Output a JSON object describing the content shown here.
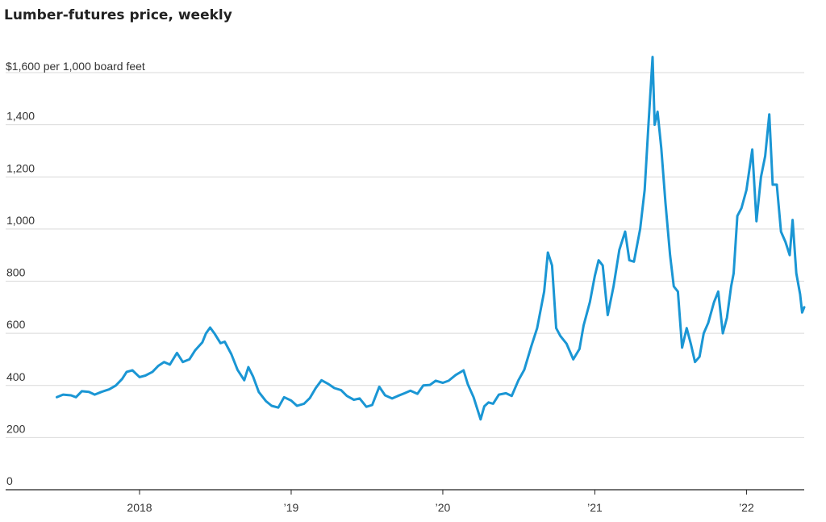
{
  "colors": {
    "line": "#1a96d4",
    "grid": "#d9d9d9",
    "axis": "#222222"
  },
  "chart_data": {
    "type": "line",
    "title": "Lumber-futures price, weekly",
    "unit_label": "$1,600 per 1,000 board feet",
    "ylim": [
      0,
      1600
    ],
    "yticks": [
      {
        "value": 0,
        "label": "0"
      },
      {
        "value": 200,
        "label": "200"
      },
      {
        "value": 400,
        "label": "400"
      },
      {
        "value": 600,
        "label": "600"
      },
      {
        "value": 800,
        "label": "800"
      },
      {
        "value": 1000,
        "label": "1,000"
      },
      {
        "value": 1200,
        "label": "1,200"
      },
      {
        "value": 1400,
        "label": "1,400"
      }
    ],
    "xlim": [
      "2017-06-15",
      "2022-05-20"
    ],
    "xticks": [
      {
        "date": "2018-01-01",
        "label": "2018"
      },
      {
        "date": "2019-01-01",
        "label": "’19"
      },
      {
        "date": "2020-01-01",
        "label": "’20"
      },
      {
        "date": "2021-01-01",
        "label": "’21"
      },
      {
        "date": "2022-01-01",
        "label": "’22"
      }
    ],
    "grid": true,
    "series": [
      {
        "points": [
          [
            "2017-06-16",
            355
          ],
          [
            "2017-07-01",
            365
          ],
          [
            "2017-07-20",
            362
          ],
          [
            "2017-08-01",
            355
          ],
          [
            "2017-08-15",
            378
          ],
          [
            "2017-09-01",
            375
          ],
          [
            "2017-09-15",
            365
          ],
          [
            "2017-10-01",
            375
          ],
          [
            "2017-10-20",
            385
          ],
          [
            "2017-11-05",
            400
          ],
          [
            "2017-11-20",
            425
          ],
          [
            "2017-12-01",
            452
          ],
          [
            "2017-12-15",
            458
          ],
          [
            "2018-01-01",
            432
          ],
          [
            "2018-01-15",
            438
          ],
          [
            "2018-02-01",
            452
          ],
          [
            "2018-02-15",
            475
          ],
          [
            "2018-03-01",
            490
          ],
          [
            "2018-03-15",
            480
          ],
          [
            "2018-04-01",
            525
          ],
          [
            "2018-04-15",
            490
          ],
          [
            "2018-05-01",
            500
          ],
          [
            "2018-05-15",
            535
          ],
          [
            "2018-06-01",
            565
          ],
          [
            "2018-06-10",
            600
          ],
          [
            "2018-06-20",
            622
          ],
          [
            "2018-07-01",
            598
          ],
          [
            "2018-07-15",
            562
          ],
          [
            "2018-07-25",
            568
          ],
          [
            "2018-08-10",
            520
          ],
          [
            "2018-08-25",
            460
          ],
          [
            "2018-09-10",
            420
          ],
          [
            "2018-09-20",
            470
          ],
          [
            "2018-10-01",
            435
          ],
          [
            "2018-10-15",
            375
          ],
          [
            "2018-11-01",
            340
          ],
          [
            "2018-11-15",
            322
          ],
          [
            "2018-12-01",
            315
          ],
          [
            "2018-12-15",
            355
          ],
          [
            "2019-01-01",
            342
          ],
          [
            "2019-01-15",
            322
          ],
          [
            "2019-02-01",
            330
          ],
          [
            "2019-02-15",
            352
          ],
          [
            "2019-03-01",
            390
          ],
          [
            "2019-03-15",
            420
          ],
          [
            "2019-04-01",
            405
          ],
          [
            "2019-04-15",
            390
          ],
          [
            "2019-05-01",
            382
          ],
          [
            "2019-05-15",
            360
          ],
          [
            "2019-06-01",
            345
          ],
          [
            "2019-06-15",
            350
          ],
          [
            "2019-07-01",
            318
          ],
          [
            "2019-07-15",
            325
          ],
          [
            "2019-08-01",
            395
          ],
          [
            "2019-08-15",
            362
          ],
          [
            "2019-09-01",
            350
          ],
          [
            "2019-09-15",
            360
          ],
          [
            "2019-10-01",
            370
          ],
          [
            "2019-10-15",
            380
          ],
          [
            "2019-11-01",
            368
          ],
          [
            "2019-11-15",
            400
          ],
          [
            "2019-12-01",
            402
          ],
          [
            "2019-12-15",
            418
          ],
          [
            "2020-01-01",
            410
          ],
          [
            "2020-01-15",
            418
          ],
          [
            "2020-02-01",
            440
          ],
          [
            "2020-02-20",
            458
          ],
          [
            "2020-03-01",
            405
          ],
          [
            "2020-03-15",
            355
          ],
          [
            "2020-04-01",
            270
          ],
          [
            "2020-04-10",
            320
          ],
          [
            "2020-04-20",
            335
          ],
          [
            "2020-05-01",
            330
          ],
          [
            "2020-05-15",
            365
          ],
          [
            "2020-06-01",
            370
          ],
          [
            "2020-06-15",
            360
          ],
          [
            "2020-07-01",
            420
          ],
          [
            "2020-07-15",
            460
          ],
          [
            "2020-08-01",
            550
          ],
          [
            "2020-08-15",
            620
          ],
          [
            "2020-09-01",
            760
          ],
          [
            "2020-09-10",
            910
          ],
          [
            "2020-09-20",
            860
          ],
          [
            "2020-09-30",
            620
          ],
          [
            "2020-10-10",
            590
          ],
          [
            "2020-10-25",
            560
          ],
          [
            "2020-11-10",
            500
          ],
          [
            "2020-11-25",
            540
          ],
          [
            "2020-12-05",
            630
          ],
          [
            "2020-12-20",
            720
          ],
          [
            "2021-01-01",
            820
          ],
          [
            "2021-01-10",
            880
          ],
          [
            "2021-01-20",
            860
          ],
          [
            "2021-02-01",
            670
          ],
          [
            "2021-02-15",
            780
          ],
          [
            "2021-03-01",
            920
          ],
          [
            "2021-03-15",
            990
          ],
          [
            "2021-03-25",
            880
          ],
          [
            "2021-04-05",
            875
          ],
          [
            "2021-04-20",
            1000
          ],
          [
            "2021-05-01",
            1150
          ],
          [
            "2021-05-10",
            1400
          ],
          [
            "2021-05-20",
            1660
          ],
          [
            "2021-05-25",
            1400
          ],
          [
            "2021-06-01",
            1450
          ],
          [
            "2021-06-10",
            1310
          ],
          [
            "2021-06-20",
            1100
          ],
          [
            "2021-07-01",
            900
          ],
          [
            "2021-07-10",
            780
          ],
          [
            "2021-07-20",
            760
          ],
          [
            "2021-07-30",
            545
          ],
          [
            "2021-08-10",
            620
          ],
          [
            "2021-08-20",
            560
          ],
          [
            "2021-08-30",
            490
          ],
          [
            "2021-09-10",
            510
          ],
          [
            "2021-09-20",
            600
          ],
          [
            "2021-10-01",
            640
          ],
          [
            "2021-10-15",
            720
          ],
          [
            "2021-10-25",
            760
          ],
          [
            "2021-11-05",
            600
          ],
          [
            "2021-11-15",
            660
          ],
          [
            "2021-11-25",
            780
          ],
          [
            "2021-12-01",
            830
          ],
          [
            "2021-12-10",
            1050
          ],
          [
            "2021-12-20",
            1080
          ],
          [
            "2022-01-01",
            1150
          ],
          [
            "2022-01-15",
            1305
          ],
          [
            "2022-01-25",
            1030
          ],
          [
            "2022-02-05",
            1200
          ],
          [
            "2022-02-15",
            1280
          ],
          [
            "2022-02-25",
            1440
          ],
          [
            "2022-03-05",
            1170
          ],
          [
            "2022-03-15",
            1170
          ],
          [
            "2022-03-25",
            990
          ],
          [
            "2022-04-05",
            950
          ],
          [
            "2022-04-15",
            900
          ],
          [
            "2022-04-22",
            1035
          ],
          [
            "2022-05-01",
            830
          ],
          [
            "2022-05-10",
            750
          ],
          [
            "2022-05-15",
            680
          ],
          [
            "2022-05-20",
            700
          ]
        ]
      }
    ]
  }
}
